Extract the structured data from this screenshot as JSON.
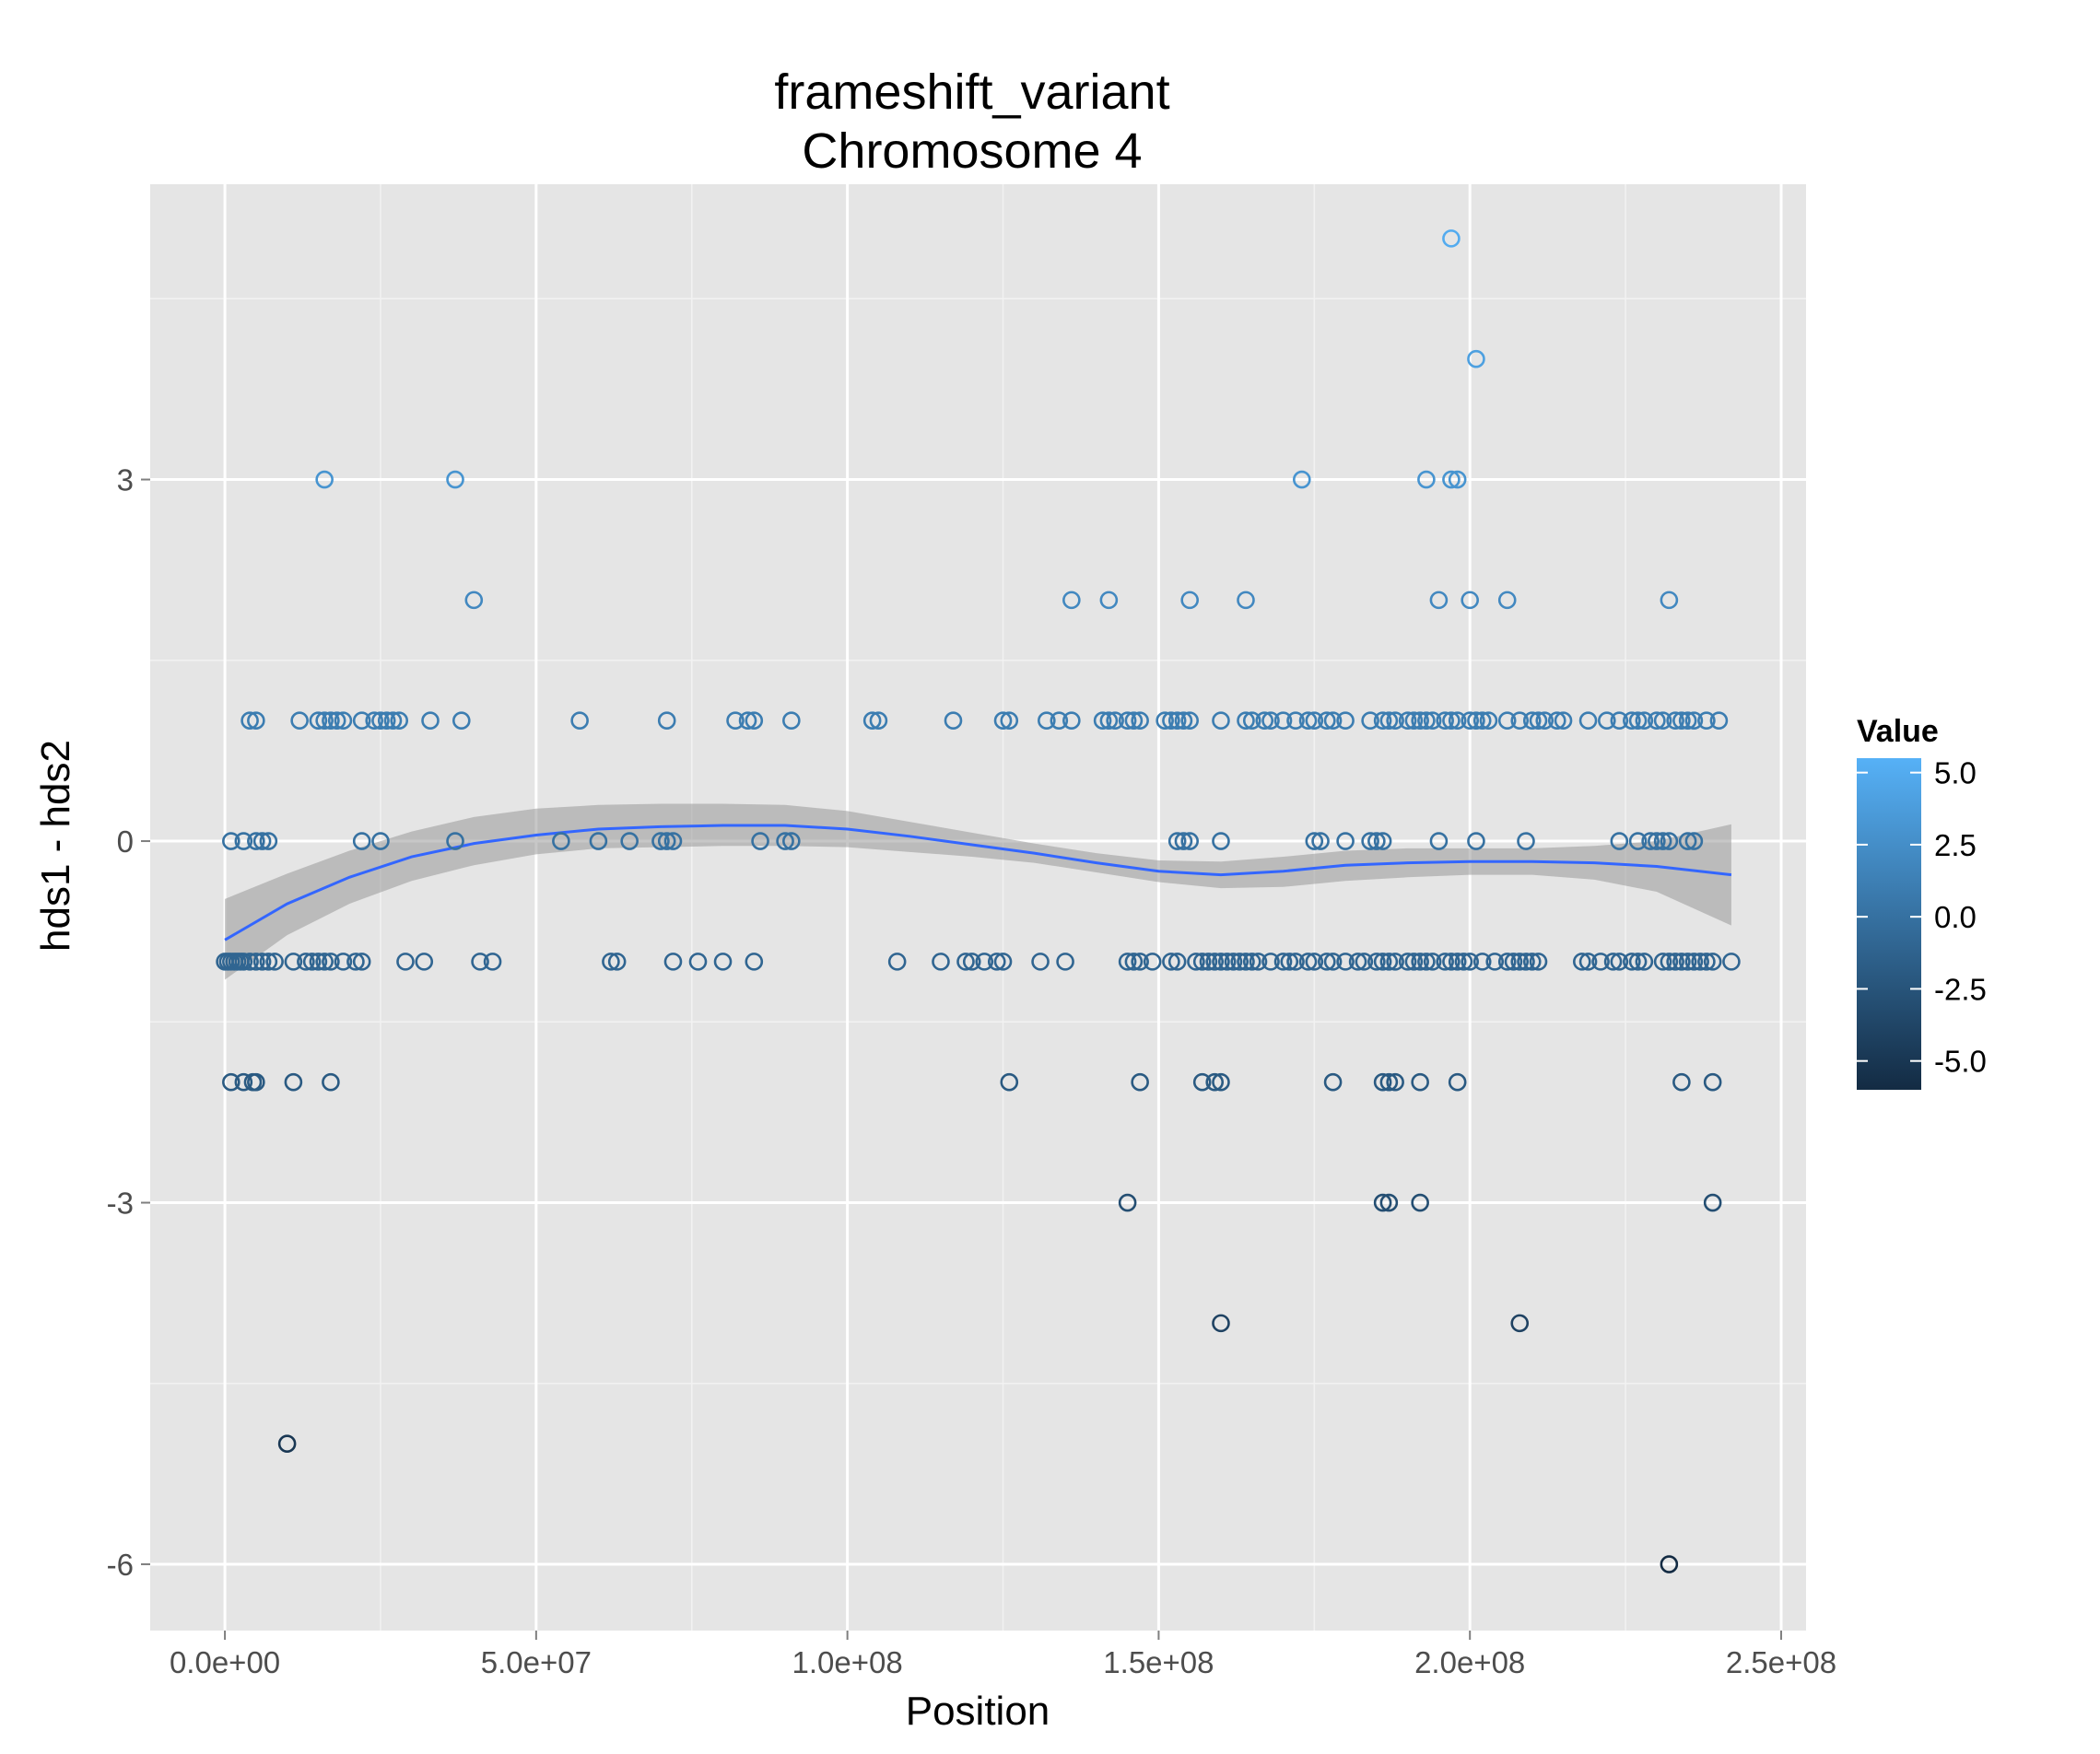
{
  "chart_data": {
    "type": "scatter",
    "title": "frameshift_variant",
    "subtitle": "Chromosome 4",
    "xlabel": "Position",
    "ylabel": "hds1 - hds2",
    "xlim": [
      -12000000.0,
      254000000.0
    ],
    "ylim": [
      -6.55,
      5.45
    ],
    "x_ticks": [
      0,
      50000000,
      100000000,
      150000000,
      200000000,
      250000000
    ],
    "x_tick_labels": [
      "0.0e+00",
      "5.0e+07",
      "1.0e+08",
      "1.5e+08",
      "2.0e+08",
      "2.5e+08"
    ],
    "y_ticks": [
      -6,
      -3,
      0,
      3
    ],
    "y_tick_labels": [
      "-6",
      "-3",
      "0",
      "3"
    ],
    "grid": true,
    "legend": {
      "title": "Value",
      "position": "right",
      "type": "colorbar",
      "range": [
        -6,
        5.5
      ],
      "ticks": [
        5.0,
        2.5,
        0.0,
        -2.5,
        -5.0
      ],
      "tick_labels": [
        "5.0",
        "2.5",
        "0.0",
        "-2.5",
        "-5.0"
      ],
      "colors": [
        "#132b43",
        "#56b1f7"
      ]
    },
    "smooth": {
      "color": "#3366ff",
      "band_color": "#999999",
      "x": [
        0,
        10000000,
        20000000,
        30000000,
        40000000,
        50000000,
        60000000,
        70000000,
        80000000,
        90000000,
        100000000,
        110000000,
        120000000,
        130000000,
        140000000,
        150000000,
        160000000,
        170000000,
        180000000,
        190000000,
        200000000,
        210000000,
        220000000,
        230000000,
        242000000
      ],
      "y": [
        -0.82,
        -0.52,
        -0.3,
        -0.13,
        -0.02,
        0.05,
        0.1,
        0.12,
        0.13,
        0.13,
        0.1,
        0.04,
        -0.03,
        -0.1,
        -0.18,
        -0.25,
        -0.28,
        -0.25,
        -0.2,
        -0.18,
        -0.17,
        -0.17,
        -0.18,
        -0.21,
        -0.28
      ],
      "lower": [
        -1.15,
        -0.78,
        -0.52,
        -0.33,
        -0.2,
        -0.11,
        -0.06,
        -0.05,
        -0.04,
        -0.04,
        -0.05,
        -0.09,
        -0.13,
        -0.18,
        -0.26,
        -0.34,
        -0.39,
        -0.38,
        -0.33,
        -0.3,
        -0.28,
        -0.28,
        -0.32,
        -0.42,
        -0.7
      ],
      "upper": [
        -0.48,
        -0.27,
        -0.08,
        0.08,
        0.2,
        0.27,
        0.3,
        0.31,
        0.31,
        0.3,
        0.25,
        0.16,
        0.07,
        -0.02,
        -0.1,
        -0.16,
        -0.17,
        -0.13,
        -0.08,
        -0.06,
        -0.06,
        -0.06,
        -0.04,
        0.0,
        0.14
      ]
    },
    "series": [
      {
        "x": [
          16000000,
          37000000,
          173000000,
          193000000,
          197000000,
          198000000,
          40000000,
          136000000,
          142000000,
          155000000,
          164000000,
          195000000,
          200000000,
          206000000,
          232000000,
          197000000,
          201000000,
          4000000,
          5000000,
          12000000,
          15000000,
          16000000,
          17000000,
          18000000,
          19000000,
          22000000,
          24000000,
          25000000,
          26000000,
          27000000,
          28000000,
          33000000,
          38000000,
          57000000,
          71000000,
          82000000,
          84000000,
          85000000,
          91000000,
          104000000,
          105000000,
          117000000,
          125000000,
          126000000,
          132000000,
          134000000,
          136000000,
          141000000,
          142000000,
          143000000,
          145000000,
          146000000,
          147000000,
          151000000,
          152000000,
          153000000,
          154000000,
          155000000,
          160000000,
          164000000,
          165000000,
          167000000,
          168000000,
          170000000,
          172000000,
          174000000,
          175000000,
          177000000,
          178000000,
          180000000,
          184000000,
          186000000,
          187000000,
          188000000,
          190000000,
          191000000,
          192000000,
          193000000,
          194000000,
          196000000,
          197000000,
          198000000,
          200000000,
          201000000,
          202000000,
          203000000,
          206000000,
          208000000,
          210000000,
          211000000,
          212000000,
          214000000,
          215000000,
          219000000,
          222000000,
          224000000,
          226000000,
          227000000,
          228000000,
          230000000,
          231000000,
          233000000,
          234000000,
          235000000,
          236000000,
          238000000,
          240000000
        ],
        "y": [
          3,
          3,
          3,
          3,
          3,
          3,
          2,
          2,
          2,
          2,
          2,
          2,
          2,
          2,
          2,
          5,
          4,
          1,
          1,
          1,
          1,
          1,
          1,
          1,
          1,
          1,
          1,
          1,
          1,
          1,
          1,
          1,
          1,
          1,
          1,
          1,
          1,
          1,
          1,
          1,
          1,
          1,
          1,
          1,
          1,
          1,
          1,
          1,
          1,
          1,
          1,
          1,
          1,
          1,
          1,
          1,
          1,
          1,
          1,
          1,
          1,
          1,
          1,
          1,
          1,
          1,
          1,
          1,
          1,
          1,
          1,
          1,
          1,
          1,
          1,
          1,
          1,
          1,
          1,
          1,
          1,
          1,
          1,
          1,
          1,
          1,
          1,
          1,
          1,
          1,
          1,
          1,
          1,
          1,
          1,
          1,
          1,
          1,
          1,
          1,
          1,
          1,
          1,
          1,
          1,
          1,
          1
        ]
      },
      {
        "x": [
          1000000,
          3000000,
          5000000,
          6000000,
          7000000,
          22000000,
          25000000,
          37000000,
          54000000,
          60000000,
          65000000,
          70000000,
          71000000,
          72000000,
          86000000,
          90000000,
          91000000,
          153000000,
          154000000,
          155000000,
          160000000,
          175000000,
          176000000,
          180000000,
          184000000,
          185000000,
          186000000,
          195000000,
          201000000,
          209000000,
          224000000,
          227000000,
          229000000,
          230000000,
          231000000,
          232000000,
          235000000,
          236000000
        ],
        "y": [
          0,
          0,
          0,
          0,
          0,
          0,
          0,
          0,
          0,
          0,
          0,
          0,
          0,
          0,
          0,
          0,
          0,
          0,
          0,
          0,
          0,
          0,
          0,
          0,
          0,
          0,
          0,
          0,
          0,
          0,
          0,
          0,
          0,
          0,
          0,
          0,
          0,
          0
        ]
      },
      {
        "x": [
          0,
          500000,
          1000000,
          1500000,
          2000000,
          2500000,
          3000000,
          4000000,
          5000000,
          6000000,
          7000000,
          8000000,
          11000000,
          13000000,
          14000000,
          15000000,
          16000000,
          17000000,
          19000000,
          21000000,
          22000000,
          29000000,
          32000000,
          41000000,
          43000000,
          62000000,
          63000000,
          72000000,
          76000000,
          80000000,
          85000000,
          108000000,
          115000000,
          119000000,
          120000000,
          122000000,
          124000000,
          125000000,
          131000000,
          135000000,
          145000000,
          146000000,
          147000000,
          149000000,
          152000000,
          153000000,
          156000000,
          157000000,
          158000000,
          159000000,
          160000000,
          161000000,
          162000000,
          163000000,
          164000000,
          165000000,
          166000000,
          168000000,
          170000000,
          171000000,
          172000000,
          174000000,
          175000000,
          177000000,
          178000000,
          180000000,
          182000000,
          183000000,
          185000000,
          186000000,
          187000000,
          188000000,
          190000000,
          191000000,
          192000000,
          193000000,
          194000000,
          196000000,
          197000000,
          198000000,
          199000000,
          200000000,
          202000000,
          204000000,
          206000000,
          207000000,
          208000000,
          209000000,
          210000000,
          211000000,
          218000000,
          219000000,
          221000000,
          223000000,
          224000000,
          226000000,
          227000000,
          228000000,
          231000000,
          232000000,
          233000000,
          234000000,
          235000000,
          236000000,
          237000000,
          238000000,
          239000000,
          242000000
        ],
        "y": [
          -1,
          -1,
          -1,
          -1,
          -1,
          -1,
          -1,
          -1,
          -1,
          -1,
          -1,
          -1,
          -1,
          -1,
          -1,
          -1,
          -1,
          -1,
          -1,
          -1,
          -1,
          -1,
          -1,
          -1,
          -1,
          -1,
          -1,
          -1,
          -1,
          -1,
          -1,
          -1,
          -1,
          -1,
          -1,
          -1,
          -1,
          -1,
          -1,
          -1,
          -1,
          -1,
          -1,
          -1,
          -1,
          -1,
          -1,
          -1,
          -1,
          -1,
          -1,
          -1,
          -1,
          -1,
          -1,
          -1,
          -1,
          -1,
          -1,
          -1,
          -1,
          -1,
          -1,
          -1,
          -1,
          -1,
          -1,
          -1,
          -1,
          -1,
          -1,
          -1,
          -1,
          -1,
          -1,
          -1,
          -1,
          -1,
          -1,
          -1,
          -1,
          -1,
          -1,
          -1,
          -1,
          -1,
          -1,
          -1,
          -1,
          -1,
          -1,
          -1,
          -1,
          -1,
          -1,
          -1,
          -1,
          -1,
          -1,
          -1,
          -1,
          -1,
          -1,
          -1,
          -1,
          -1,
          -1,
          -1
        ]
      },
      {
        "x": [
          1000000,
          3000000,
          4500000,
          5000000,
          11000000,
          17000000,
          126000000,
          147000000,
          157000000,
          159000000,
          160000000,
          178000000,
          186000000,
          187000000,
          188000000,
          192000000,
          198000000,
          234000000,
          239000000
        ],
        "y": [
          -2,
          -2,
          -2,
          -2,
          -2,
          -2,
          -2,
          -2,
          -2,
          -2,
          -2,
          -2,
          -2,
          -2,
          -2,
          -2,
          -2,
          -2,
          -2
        ]
      },
      {
        "x": [
          145000000,
          186000000,
          187000000,
          192000000,
          239000000,
          160000000,
          208000000,
          10000000,
          232000000
        ],
        "y": [
          -3,
          -3,
          -3,
          -3,
          -3,
          -4,
          -4,
          -5,
          -6
        ]
      }
    ]
  }
}
